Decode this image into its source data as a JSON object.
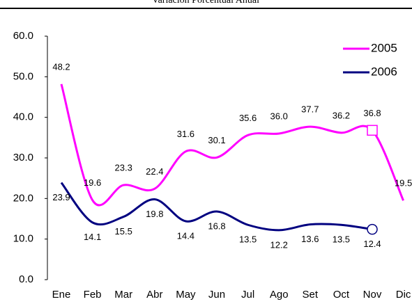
{
  "chart_data": {
    "type": "line",
    "title": "Variación Porcentual Anual",
    "categories": [
      "Ene",
      "Feb",
      "Mar",
      "Abr",
      "May",
      "Jun",
      "Jul",
      "Ago",
      "Set",
      "Oct",
      "Nov",
      "Dic"
    ],
    "series": [
      {
        "name": "2005",
        "color": "#ff00ff",
        "marker": "square",
        "marker_index": 10,
        "values": [
          48.2,
          19.6,
          23.3,
          22.4,
          31.6,
          30.1,
          35.6,
          36.0,
          37.7,
          36.2,
          36.8,
          19.5
        ],
        "value_labels": [
          "48.2",
          "19.6",
          "23.3",
          "22.4",
          "31.6",
          "30.1",
          "35.6",
          "36.0",
          "37.7",
          "36.2",
          "36.8",
          "19.5"
        ]
      },
      {
        "name": "2006",
        "color": "#000080",
        "marker": "circle",
        "marker_index": 10,
        "values": [
          23.9,
          14.1,
          15.5,
          19.8,
          14.4,
          16.8,
          13.5,
          12.2,
          13.6,
          13.5,
          12.4,
          null
        ],
        "value_labels": [
          "23.9",
          "14.1",
          "15.5",
          "19.8",
          "14.4",
          "16.8",
          "13.5",
          "12.2",
          "13.6",
          "13.5",
          "12.4",
          null
        ]
      }
    ],
    "ylim": [
      0,
      60
    ],
    "yticks": [
      {
        "value": 0,
        "label": "0.0"
      },
      {
        "value": 10,
        "label": "10.0"
      },
      {
        "value": 20,
        "label": "20.0"
      },
      {
        "value": 30,
        "label": "30.0"
      },
      {
        "value": 40,
        "label": "40.0"
      },
      {
        "value": 50,
        "label": "50.0"
      },
      {
        "value": 60,
        "label": "60.0"
      }
    ],
    "grid": false,
    "legend": "upper right"
  }
}
